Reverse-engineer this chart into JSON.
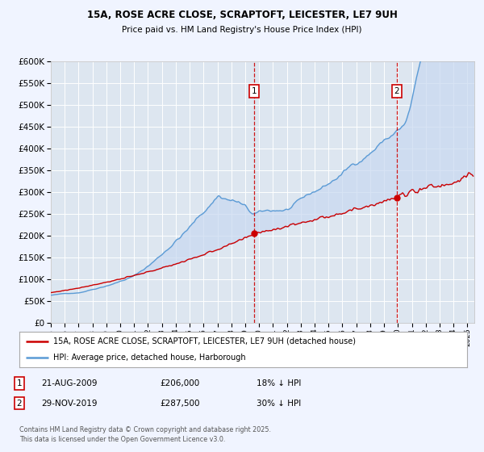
{
  "title": "15A, ROSE ACRE CLOSE, SCRAPTOFT, LEICESTER, LE7 9UH",
  "subtitle": "Price paid vs. HM Land Registry's House Price Index (HPI)",
  "background_color": "#f0f4ff",
  "plot_bg_color": "#dde6f0",
  "fill_color": "#c8d8f0",
  "hpi_color": "#5b9bd5",
  "price_color": "#cc0000",
  "ylim": [
    0,
    600000
  ],
  "yticks": [
    0,
    50000,
    100000,
    150000,
    200000,
    250000,
    300000,
    350000,
    400000,
    450000,
    500000,
    550000,
    600000
  ],
  "xlim_start": 1995.0,
  "xlim_end": 2025.5,
  "transaction1": {
    "date_x": 2009.64,
    "price": 206000,
    "label": "1",
    "date_str": "21-AUG-2009",
    "price_str": "£206,000",
    "pct": "18% ↓ HPI"
  },
  "transaction2": {
    "date_x": 2019.92,
    "price": 287500,
    "label": "2",
    "date_str": "29-NOV-2019",
    "price_str": "£287,500",
    "pct": "30% ↓ HPI"
  },
  "legend_line1": "15A, ROSE ACRE CLOSE, SCRAPTOFT, LEICESTER, LE7 9UH (detached house)",
  "legend_line2": "HPI: Average price, detached house, Harborough",
  "footer": "Contains HM Land Registry data © Crown copyright and database right 2025.\nThis data is licensed under the Open Government Licence v3.0."
}
